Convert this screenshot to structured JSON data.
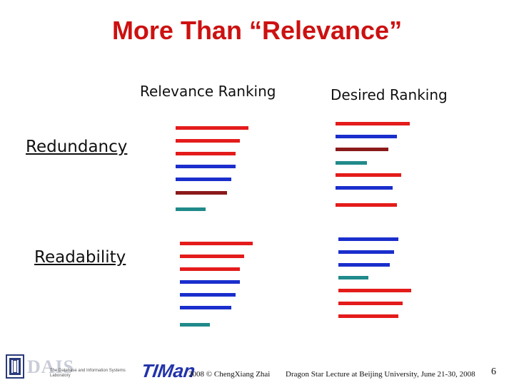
{
  "title": "More Than “Relevance”",
  "columns": {
    "relevance": "Relevance Ranking",
    "desired": "Desired Ranking"
  },
  "rows": {
    "redundancy": "Redundancy",
    "readability": "Readability"
  },
  "colors": {
    "red": "#e41b1b",
    "blue": "#1a2ecc",
    "darkred": "#8b1a1a",
    "teal": "#218a8a"
  },
  "footer": {
    "copyright": "2008 © ChengXiang Zhai",
    "lecture": "Dragon Star Lecture at Beijing University, June 21-30, 2008",
    "page_number": "6",
    "logo_dais": "DAIS",
    "logo_dais_caption": "The Database and Information Systems Laboratory",
    "logo_timan": "TIMan"
  }
}
